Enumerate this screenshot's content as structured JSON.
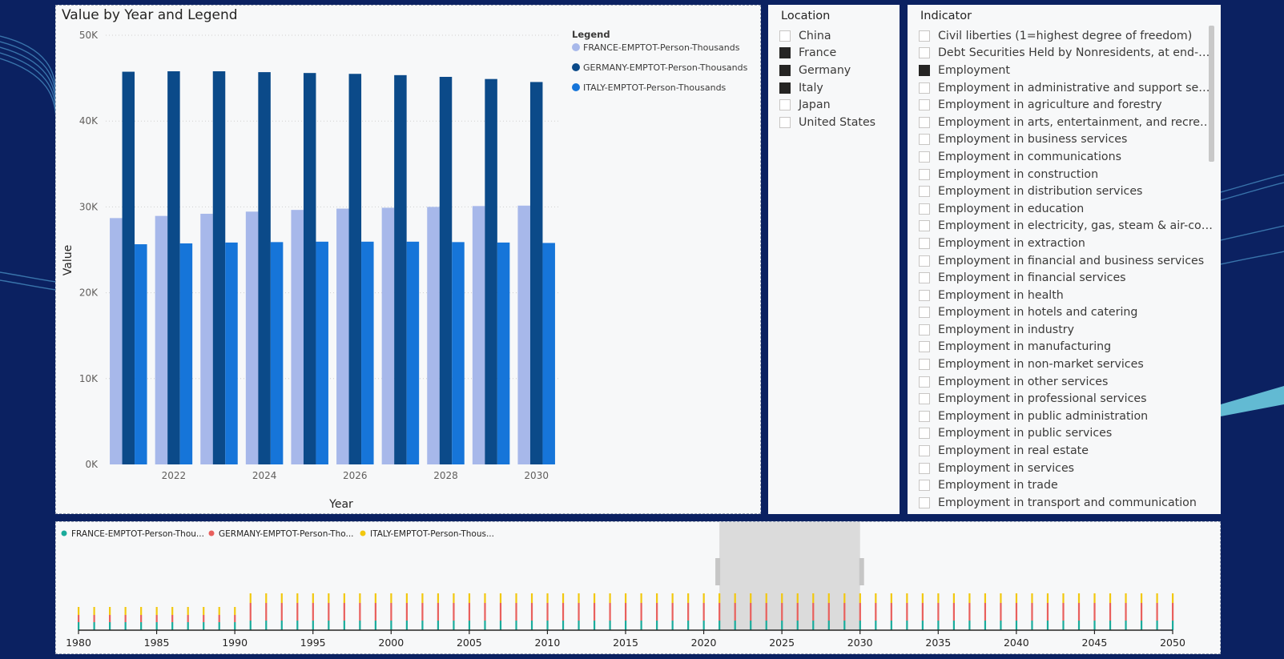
{
  "chart": {
    "title": "Value by Year and Legend",
    "legend_title": "Legend",
    "colors": [
      "#a7b8ea",
      "#0b4a89",
      "#1675d9"
    ]
  },
  "chart_data": {
    "type": "bar",
    "title": "Value by Year and Legend",
    "xlabel": "Year",
    "ylabel": "Value",
    "ylim": [
      0,
      50000
    ],
    "yticks": [
      "0K",
      "10K",
      "20K",
      "30K",
      "40K",
      "50K"
    ],
    "xticks": [
      "2022",
      "2024",
      "2026",
      "2028",
      "2030"
    ],
    "categories": [
      2021,
      2022,
      2023,
      2024,
      2025,
      2026,
      2027,
      2028,
      2029,
      2030
    ],
    "grid": true,
    "legend_position": "top-right",
    "series": [
      {
        "name": "FRANCE-EMPTOT-Person-Thousands",
        "values": [
          28700,
          28950,
          29200,
          29450,
          29650,
          29800,
          29900,
          30000,
          30100,
          30150
        ]
      },
      {
        "name": "GERMANY-EMPTOT-Person-Thousands",
        "values": [
          45750,
          45800,
          45800,
          45700,
          45600,
          45500,
          45350,
          45150,
          44900,
          44550
        ]
      },
      {
        "name": "ITALY-EMPTOT-Person-Thousands",
        "values": [
          25650,
          25750,
          25850,
          25900,
          25950,
          25950,
          25950,
          25900,
          25850,
          25800
        ]
      }
    ]
  },
  "location": {
    "title": "Location",
    "items": [
      {
        "label": "China",
        "checked": false
      },
      {
        "label": "France",
        "checked": true
      },
      {
        "label": "Germany",
        "checked": true
      },
      {
        "label": "Italy",
        "checked": true
      },
      {
        "label": "Japan",
        "checked": false
      },
      {
        "label": "United States",
        "checked": false
      }
    ]
  },
  "indicator": {
    "title": "Indicator",
    "items": [
      {
        "label": "Civil liberties (1=highest degree of freedom)",
        "checked": false
      },
      {
        "label": "Debt Securities Held by Nonresidents, at end-period",
        "checked": false
      },
      {
        "label": "Employment",
        "checked": true
      },
      {
        "label": "Employment in administrative and support services",
        "checked": false
      },
      {
        "label": "Employment in agriculture and forestry",
        "checked": false
      },
      {
        "label": "Employment in arts, entertainment, and recreation",
        "checked": false
      },
      {
        "label": "Employment in business services",
        "checked": false
      },
      {
        "label": "Employment in communications",
        "checked": false
      },
      {
        "label": "Employment in construction",
        "checked": false
      },
      {
        "label": "Employment in distribution services",
        "checked": false
      },
      {
        "label": "Employment in education",
        "checked": false
      },
      {
        "label": "Employment in electricity, gas, steam & air-conditioning supply",
        "checked": false
      },
      {
        "label": "Employment in extraction",
        "checked": false
      },
      {
        "label": "Employment in financial and business services",
        "checked": false
      },
      {
        "label": "Employment in financial services",
        "checked": false
      },
      {
        "label": "Employment in health",
        "checked": false
      },
      {
        "label": "Employment in hotels and catering",
        "checked": false
      },
      {
        "label": "Employment in industry",
        "checked": false
      },
      {
        "label": "Employment in manufacturing",
        "checked": false
      },
      {
        "label": "Employment in non-market services",
        "checked": false
      },
      {
        "label": "Employment in other services",
        "checked": false
      },
      {
        "label": "Employment in professional services",
        "checked": false
      },
      {
        "label": "Employment in public administration",
        "checked": false
      },
      {
        "label": "Employment in public services",
        "checked": false
      },
      {
        "label": "Employment in real estate",
        "checked": false
      },
      {
        "label": "Employment in services",
        "checked": false
      },
      {
        "label": "Employment in trade",
        "checked": false
      },
      {
        "label": "Employment in transport and communication",
        "checked": false
      }
    ]
  },
  "timeline": {
    "legend": [
      {
        "name": "FRANCE-EMPTOT-Person-Thou...",
        "color": "#1aab9b"
      },
      {
        "name": "GERMANY-EMPTOT-Person-Tho...",
        "color": "#e8605d"
      },
      {
        "name": "ITALY-EMPTOT-Person-Thous...",
        "color": "#f2c80f"
      }
    ],
    "x_start": 1980,
    "x_end": 2050,
    "x_ticks": [
      "1980",
      "1985",
      "1990",
      "1995",
      "2000",
      "2005",
      "2010",
      "2015",
      "2020",
      "2025",
      "2030",
      "2035",
      "2040",
      "2045",
      "2050"
    ],
    "selected_range": [
      2021,
      2030
    ]
  }
}
